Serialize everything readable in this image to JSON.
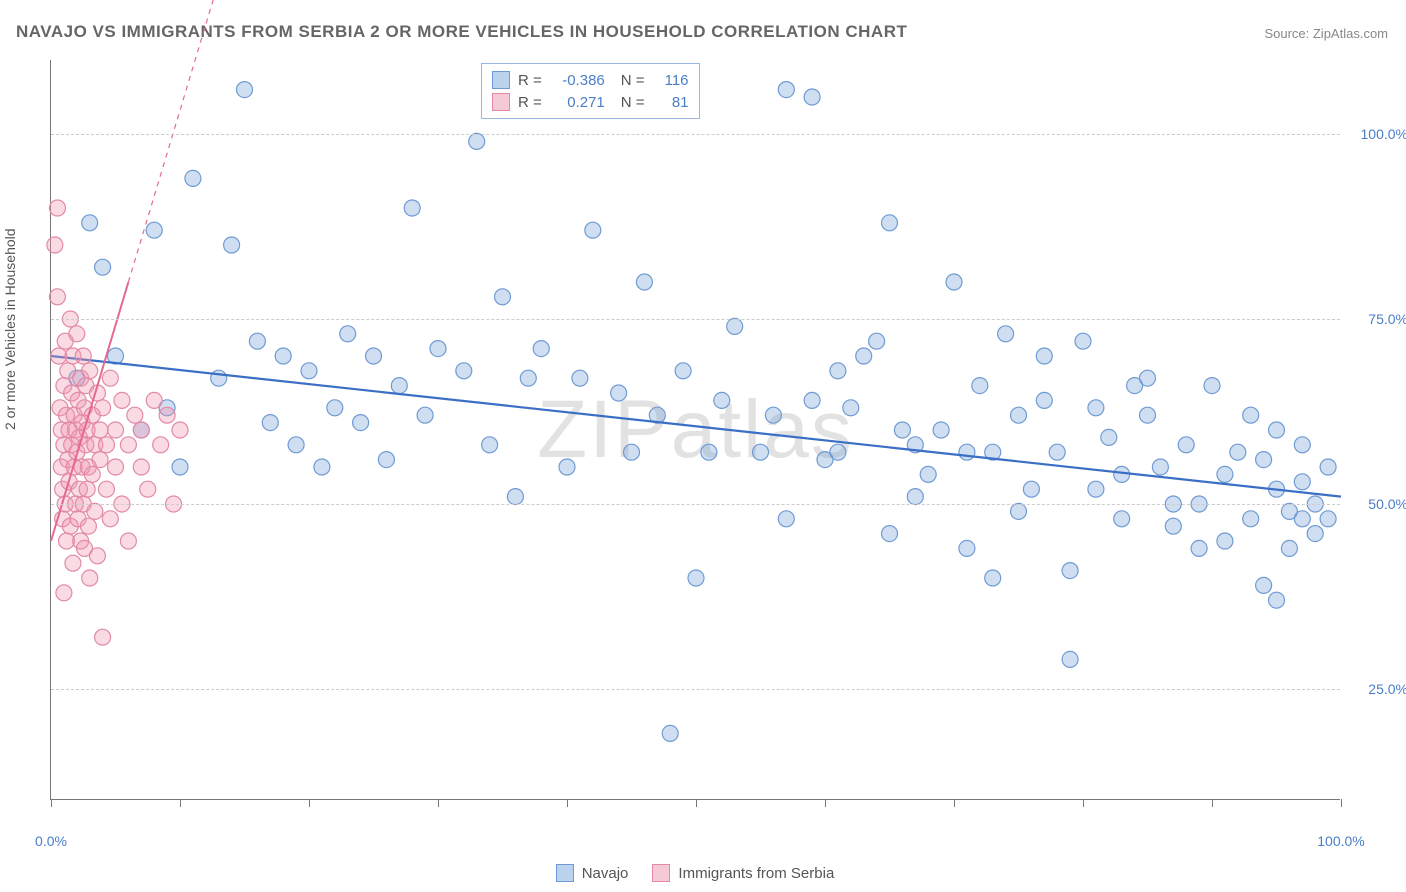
{
  "title": "NAVAJO VS IMMIGRANTS FROM SERBIA 2 OR MORE VEHICLES IN HOUSEHOLD CORRELATION CHART",
  "source": "Source: ZipAtlas.com",
  "watermark": "ZIPatlas",
  "ylabel": "2 or more Vehicles in Household",
  "chart": {
    "type": "scatter",
    "xlim": [
      0,
      100
    ],
    "ylim": [
      10,
      110
    ],
    "yticks": [
      25,
      50,
      75,
      100
    ],
    "ytick_labels": [
      "25.0%",
      "50.0%",
      "75.0%",
      "100.0%"
    ],
    "xticks": [
      0,
      10,
      20,
      30,
      40,
      50,
      60,
      70,
      80,
      90,
      100
    ],
    "xtick_labels_shown": {
      "0": "0.0%",
      "100": "100.0%"
    },
    "grid_color": "#cccccc",
    "background_color": "#ffffff",
    "axis_color": "#777777",
    "tick_label_color": "#4a7ec9",
    "marker_radius": 8,
    "marker_stroke_width": 1.2,
    "series": [
      {
        "name": "Navajo",
        "color_fill": "rgba(120,160,215,0.35)",
        "color_stroke": "#6f9bd4",
        "swatch_fill": "#bcd3ef",
        "swatch_stroke": "#6f9bd4",
        "R": "-0.386",
        "N": "116",
        "regression": {
          "x1": 0,
          "y1": 70,
          "x2": 100,
          "y2": 51,
          "dash_extend": false,
          "color": "#3a6fc5",
          "width": 2.2
        },
        "points": [
          [
            2,
            67
          ],
          [
            3,
            88
          ],
          [
            4,
            82
          ],
          [
            5,
            70
          ],
          [
            7,
            60
          ],
          [
            8,
            87
          ],
          [
            9,
            63
          ],
          [
            10,
            55
          ],
          [
            11,
            94
          ],
          [
            13,
            67
          ],
          [
            14,
            85
          ],
          [
            15,
            106
          ],
          [
            16,
            72
          ],
          [
            17,
            61
          ],
          [
            18,
            70
          ],
          [
            19,
            58
          ],
          [
            20,
            68
          ],
          [
            21,
            55
          ],
          [
            22,
            63
          ],
          [
            23,
            73
          ],
          [
            24,
            61
          ],
          [
            25,
            70
          ],
          [
            26,
            56
          ],
          [
            27,
            66
          ],
          [
            28,
            90
          ],
          [
            29,
            62
          ],
          [
            30,
            71
          ],
          [
            32,
            68
          ],
          [
            33,
            99
          ],
          [
            34,
            58
          ],
          [
            35,
            78
          ],
          [
            36,
            51
          ],
          [
            37,
            67
          ],
          [
            38,
            71
          ],
          [
            40,
            55
          ],
          [
            41,
            67
          ],
          [
            42,
            87
          ],
          [
            44,
            65
          ],
          [
            45,
            57
          ],
          [
            46,
            80
          ],
          [
            47,
            62
          ],
          [
            48,
            19
          ],
          [
            49,
            68
          ],
          [
            50,
            40
          ],
          [
            51,
            57
          ],
          [
            52,
            64
          ],
          [
            53,
            74
          ],
          [
            55,
            57
          ],
          [
            56,
            62
          ],
          [
            57,
            106
          ],
          [
            59,
            105
          ],
          [
            60,
            56
          ],
          [
            61,
            68
          ],
          [
            62,
            63
          ],
          [
            64,
            72
          ],
          [
            65,
            88
          ],
          [
            66,
            60
          ],
          [
            67,
            58
          ],
          [
            68,
            54
          ],
          [
            70,
            80
          ],
          [
            71,
            57
          ],
          [
            72,
            66
          ],
          [
            73,
            40
          ],
          [
            74,
            73
          ],
          [
            75,
            62
          ],
          [
            76,
            52
          ],
          [
            77,
            64
          ],
          [
            78,
            57
          ],
          [
            79,
            29
          ],
          [
            80,
            72
          ],
          [
            81,
            52
          ],
          [
            82,
            59
          ],
          [
            83,
            48
          ],
          [
            84,
            66
          ],
          [
            85,
            62
          ],
          [
            86,
            55
          ],
          [
            87,
            47
          ],
          [
            88,
            58
          ],
          [
            89,
            50
          ],
          [
            90,
            66
          ],
          [
            91,
            45
          ],
          [
            92,
            57
          ],
          [
            93,
            48
          ],
          [
            93,
            62
          ],
          [
            94,
            39
          ],
          [
            94,
            56
          ],
          [
            95,
            37
          ],
          [
            95,
            52
          ],
          [
            95,
            60
          ],
          [
            96,
            44
          ],
          [
            96,
            49
          ],
          [
            97,
            48
          ],
          [
            97,
            53
          ],
          [
            97,
            58
          ],
          [
            98,
            50
          ],
          [
            98,
            46
          ],
          [
            99,
            55
          ],
          [
            99,
            48
          ],
          [
            91,
            54
          ],
          [
            89,
            44
          ],
          [
            87,
            50
          ],
          [
            85,
            67
          ],
          [
            83,
            54
          ],
          [
            81,
            63
          ],
          [
            79,
            41
          ],
          [
            77,
            70
          ],
          [
            75,
            49
          ],
          [
            73,
            57
          ],
          [
            71,
            44
          ],
          [
            69,
            60
          ],
          [
            67,
            51
          ],
          [
            65,
            46
          ],
          [
            63,
            70
          ],
          [
            61,
            57
          ],
          [
            59,
            64
          ],
          [
            57,
            48
          ]
        ]
      },
      {
        "name": "Immigrants from Serbia",
        "color_fill": "rgba(240,150,175,0.35)",
        "color_stroke": "#e28aa5",
        "swatch_fill": "#f5c9d6",
        "swatch_stroke": "#e28aa5",
        "R": "0.271",
        "N": "81",
        "regression": {
          "x1": 0,
          "y1": 45,
          "x2": 6,
          "y2": 80,
          "dash_extend": true,
          "dash_x2": 16,
          "dash_y2": 138,
          "color": "#e46a8f",
          "width": 2
        },
        "points": [
          [
            0.3,
            85
          ],
          [
            0.5,
            78
          ],
          [
            0.6,
            70
          ],
          [
            0.7,
            63
          ],
          [
            0.8,
            60
          ],
          [
            0.8,
            55
          ],
          [
            0.9,
            52
          ],
          [
            0.9,
            48
          ],
          [
            1.0,
            66
          ],
          [
            1.0,
            58
          ],
          [
            1.1,
            72
          ],
          [
            1.1,
            50
          ],
          [
            1.2,
            62
          ],
          [
            1.2,
            45
          ],
          [
            1.3,
            56
          ],
          [
            1.3,
            68
          ],
          [
            1.4,
            60
          ],
          [
            1.4,
            53
          ],
          [
            1.5,
            75
          ],
          [
            1.5,
            47
          ],
          [
            1.6,
            65
          ],
          [
            1.6,
            58
          ],
          [
            1.7,
            42
          ],
          [
            1.7,
            70
          ],
          [
            1.8,
            55
          ],
          [
            1.8,
            62
          ],
          [
            1.9,
            50
          ],
          [
            1.9,
            60
          ],
          [
            2.0,
            73
          ],
          [
            2.0,
            57
          ],
          [
            2.1,
            48
          ],
          [
            2.1,
            64
          ],
          [
            2.2,
            59
          ],
          [
            2.2,
            52
          ],
          [
            2.3,
            67
          ],
          [
            2.3,
            45
          ],
          [
            2.4,
            61
          ],
          [
            2.4,
            55
          ],
          [
            2.5,
            70
          ],
          [
            2.5,
            50
          ],
          [
            2.6,
            63
          ],
          [
            2.6,
            44
          ],
          [
            2.7,
            58
          ],
          [
            2.7,
            66
          ],
          [
            2.8,
            52
          ],
          [
            2.8,
            60
          ],
          [
            2.9,
            47
          ],
          [
            2.9,
            55
          ],
          [
            3.0,
            68
          ],
          [
            3.0,
            40
          ],
          [
            3.2,
            62
          ],
          [
            3.2,
            54
          ],
          [
            3.4,
            58
          ],
          [
            3.4,
            49
          ],
          [
            3.6,
            65
          ],
          [
            3.6,
            43
          ],
          [
            3.8,
            56
          ],
          [
            3.8,
            60
          ],
          [
            4.0,
            32
          ],
          [
            4.0,
            63
          ],
          [
            4.3,
            52
          ],
          [
            4.3,
            58
          ],
          [
            4.6,
            67
          ],
          [
            4.6,
            48
          ],
          [
            5.0,
            60
          ],
          [
            5.0,
            55
          ],
          [
            5.5,
            64
          ],
          [
            5.5,
            50
          ],
          [
            6.0,
            58
          ],
          [
            6.0,
            45
          ],
          [
            6.5,
            62
          ],
          [
            7.0,
            55
          ],
          [
            7.0,
            60
          ],
          [
            7.5,
            52
          ],
          [
            8.0,
            64
          ],
          [
            8.5,
            58
          ],
          [
            9.0,
            62
          ],
          [
            9.5,
            50
          ],
          [
            10.0,
            60
          ],
          [
            1.0,
            38
          ],
          [
            0.5,
            90
          ]
        ]
      }
    ]
  },
  "legend_top": {
    "rows": [
      {
        "swatch": 0,
        "r_label": "R =",
        "n_label": "N ="
      },
      {
        "swatch": 1,
        "r_label": "R =",
        "n_label": "N ="
      }
    ]
  },
  "legend_bottom": [
    {
      "swatch": 0
    },
    {
      "swatch": 1
    }
  ]
}
